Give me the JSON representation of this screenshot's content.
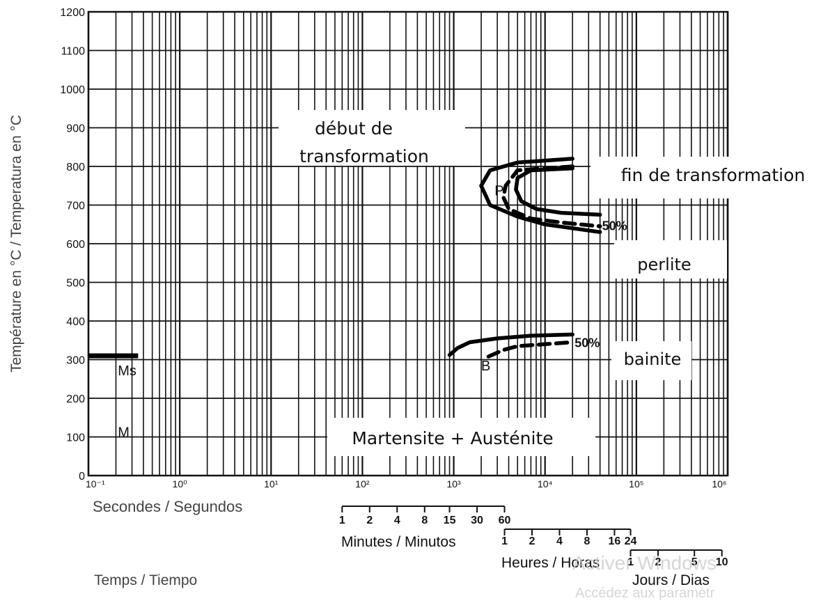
{
  "chart_data": {
    "type": "line",
    "title": "",
    "xlabel": "Temps / Tiempo",
    "ylabel": "Température en °C / Temperatura en °C",
    "x_scale": "log",
    "xlim": [
      0.1,
      1000000
    ],
    "ylim": [
      0,
      1200
    ],
    "grid": true,
    "y_ticks": [
      0,
      100,
      200,
      300,
      400,
      500,
      600,
      700,
      800,
      900,
      1000,
      1100,
      1200
    ],
    "y_tick_labels": [
      "0",
      "100",
      "200",
      "300",
      "400",
      "500",
      "600",
      "700",
      "800",
      "900",
      "1000",
      "1100",
      "1200"
    ],
    "x_decade_ticks": [
      0.1,
      1,
      10,
      100,
      1000,
      10000,
      100000,
      1000000
    ],
    "x_decade_labels": [
      "10⁻¹",
      "10⁰",
      "10¹",
      "10²",
      "10³",
      "10⁴",
      "10⁵",
      "10⁶"
    ],
    "seconds_axis_label": "Secondes / Segundos",
    "time_scales": [
      {
        "label": "Minutes / Minutos",
        "tick_labels": [
          "1",
          "2",
          "4",
          "8",
          "15",
          "30",
          "60"
        ],
        "tick_values_s": [
          60,
          120,
          240,
          480,
          900,
          1800,
          3600
        ]
      },
      {
        "label": "Heures / Horas",
        "tick_labels": [
          "1",
          "2",
          "4",
          "8",
          "16",
          "24"
        ],
        "tick_values_s": [
          3600,
          7200,
          14400,
          28800,
          57600,
          86400
        ]
      },
      {
        "label": "Jours / Dias",
        "tick_labels": [
          "1",
          "2",
          "5",
          "10"
        ],
        "tick_values_s": [
          86400,
          172800,
          432000,
          864000
        ]
      }
    ],
    "series": [
      {
        "role": "pearlite-start",
        "style": "solid",
        "x": [
          20000,
          5000,
          2500,
          2000,
          2500,
          5000,
          10000,
          20000,
          40000
        ],
        "y": [
          820,
          810,
          790,
          750,
          700,
          670,
          650,
          640,
          630
        ]
      },
      {
        "role": "pearlite-50pct",
        "style": "dashed",
        "x": [
          20000,
          5000,
          3700,
          3500,
          4000,
          7000,
          15000,
          40000
        ],
        "y": [
          800,
          790,
          750,
          720,
          690,
          665,
          655,
          645
        ]
      },
      {
        "role": "pearlite-end",
        "style": "solid",
        "x": [
          20000,
          7000,
          5000,
          4800,
          5500,
          8000,
          15000,
          40000
        ],
        "y": [
          795,
          790,
          770,
          740,
          710,
          690,
          680,
          675
        ]
      },
      {
        "role": "bainite-start",
        "style": "solid",
        "x": [
          900,
          1100,
          1500,
          3000,
          7000,
          20000
        ],
        "y": [
          312,
          330,
          345,
          355,
          362,
          365
        ]
      },
      {
        "role": "bainite-50pct",
        "style": "dashed",
        "x": [
          2400,
          3500,
          5000,
          10000,
          20000
        ],
        "y": [
          308,
          325,
          335,
          340,
          345
        ]
      }
    ],
    "ms_line": {
      "y": 310,
      "x_range": [
        0.1,
        0.35
      ],
      "label": "Ms"
    },
    "region_labels": {
      "m": "M",
      "p": "P",
      "b": "B"
    },
    "pct_labels": {
      "pearlite": "50%",
      "bainite": "50%"
    },
    "annotations": {
      "debut_line1": "début de",
      "debut_line2": "transformation",
      "fin": "fin de transformation",
      "perlite": "perlite",
      "bainite": "bainite",
      "martensite": "Martensite + Austénite"
    }
  },
  "watermark": {
    "line1": "Activer Windows",
    "line2": "Accédez aux paramètr"
  }
}
